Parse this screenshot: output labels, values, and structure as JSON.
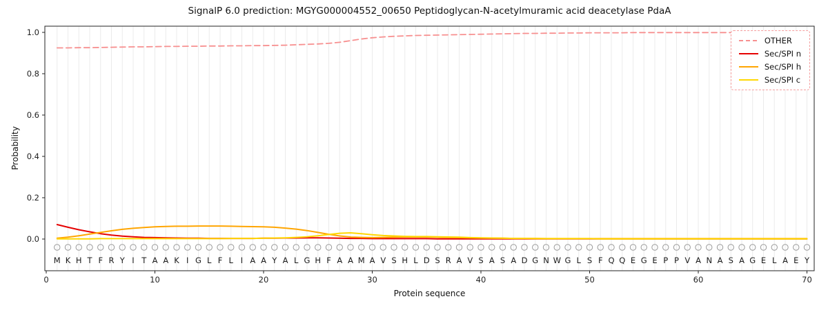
{
  "chart_data": {
    "type": "line",
    "title": "SignalP 6.0 prediction: MGYG000004552_00650 Peptidoglycan-N-acetylmuramic acid deacetylase PdaA",
    "xlabel": "Protein sequence",
    "ylabel": "Probability",
    "xlim": [
      0,
      71
    ],
    "ylim": [
      0,
      1.05
    ],
    "xticks": [
      0,
      10,
      20,
      30,
      40,
      50,
      60,
      70
    ],
    "yticks": [
      0.0,
      0.2,
      0.4,
      0.6,
      0.8,
      1.0
    ],
    "grid": "vertical line per residue, light gray",
    "legend_position": "upper right",
    "sequence": "MKHTFRYITAAKIGLFLIAAYALGHFAAMAVSHLDSRAVSASADGNWGLSFQQEGEPPVANASAGELAEY",
    "x_start": 1,
    "series": [
      {
        "name": "OTHER",
        "color": "#f78f8f",
        "style": "dashed",
        "values": [
          0.925,
          0.925,
          0.926,
          0.926,
          0.927,
          0.928,
          0.929,
          0.93,
          0.93,
          0.931,
          0.932,
          0.932,
          0.933,
          0.933,
          0.934,
          0.934,
          0.935,
          0.935,
          0.936,
          0.936,
          0.937,
          0.938,
          0.94,
          0.942,
          0.944,
          0.947,
          0.952,
          0.96,
          0.968,
          0.974,
          0.978,
          0.981,
          0.983,
          0.985,
          0.986,
          0.987,
          0.988,
          0.989,
          0.99,
          0.991,
          0.992,
          0.993,
          0.994,
          0.995,
          0.995,
          0.996,
          0.996,
          0.997,
          0.997,
          0.998,
          0.998,
          0.998,
          0.998,
          0.999,
          0.999,
          0.999,
          0.999,
          0.999,
          0.999,
          0.999,
          0.999,
          0.999,
          0.999,
          0.999,
          0.999,
          0.999,
          0.999,
          0.999,
          0.999,
          0.999
        ]
      },
      {
        "name": "Sec/SPI n",
        "color": "#e50000",
        "style": "solid",
        "values": [
          0.07,
          0.057,
          0.045,
          0.035,
          0.026,
          0.019,
          0.014,
          0.011,
          0.008,
          0.007,
          0.006,
          0.005,
          0.004,
          0.004,
          0.003,
          0.003,
          0.003,
          0.003,
          0.003,
          0.004,
          0.004,
          0.005,
          0.005,
          0.006,
          0.006,
          0.005,
          0.004,
          0.003,
          0.003,
          0.002,
          0.002,
          0.002,
          0.002,
          0.002,
          0.002,
          0.001,
          0.001,
          0.001,
          0.001,
          0.001,
          0.001,
          0.001,
          0.001,
          0.001,
          0.001,
          0.001,
          0.001,
          0.001,
          0.001,
          0.001,
          0.001,
          0.001,
          0.001,
          0.001,
          0.001,
          0.001,
          0.001,
          0.001,
          0.001,
          0.001,
          0.001,
          0.001,
          0.001,
          0.001,
          0.001,
          0.001,
          0.001,
          0.001,
          0.001,
          0.001
        ]
      },
      {
        "name": "Sec/SPI h",
        "color": "#ffa500",
        "style": "solid",
        "values": [
          0.004,
          0.009,
          0.016,
          0.024,
          0.032,
          0.04,
          0.047,
          0.052,
          0.056,
          0.059,
          0.061,
          0.062,
          0.062,
          0.063,
          0.063,
          0.063,
          0.062,
          0.061,
          0.06,
          0.059,
          0.057,
          0.053,
          0.048,
          0.041,
          0.032,
          0.023,
          0.015,
          0.01,
          0.008,
          0.007,
          0.008,
          0.009,
          0.01,
          0.01,
          0.01,
          0.009,
          0.008,
          0.007,
          0.006,
          0.005,
          0.004,
          0.004,
          0.003,
          0.003,
          0.003,
          0.002,
          0.002,
          0.002,
          0.002,
          0.002,
          0.002,
          0.002,
          0.002,
          0.002,
          0.002,
          0.002,
          0.002,
          0.002,
          0.002,
          0.002,
          0.002,
          0.002,
          0.002,
          0.002,
          0.002,
          0.002,
          0.002,
          0.002,
          0.002,
          0.002
        ]
      },
      {
        "name": "Sec/SPI c",
        "color": "#ffd700",
        "style": "solid",
        "values": [
          0.001,
          0.001,
          0.001,
          0.001,
          0.002,
          0.002,
          0.002,
          0.002,
          0.002,
          0.002,
          0.002,
          0.002,
          0.002,
          0.002,
          0.002,
          0.002,
          0.003,
          0.003,
          0.003,
          0.004,
          0.005,
          0.006,
          0.008,
          0.011,
          0.016,
          0.022,
          0.028,
          0.03,
          0.026,
          0.021,
          0.017,
          0.015,
          0.013,
          0.012,
          0.012,
          0.011,
          0.01,
          0.009,
          0.007,
          0.006,
          0.005,
          0.004,
          0.003,
          0.003,
          0.002,
          0.002,
          0.002,
          0.002,
          0.002,
          0.002,
          0.001,
          0.001,
          0.001,
          0.001,
          0.001,
          0.001,
          0.001,
          0.001,
          0.001,
          0.001,
          0.001,
          0.001,
          0.001,
          0.001,
          0.001,
          0.001,
          0.001,
          0.001,
          0.001,
          0.001
        ]
      }
    ]
  }
}
